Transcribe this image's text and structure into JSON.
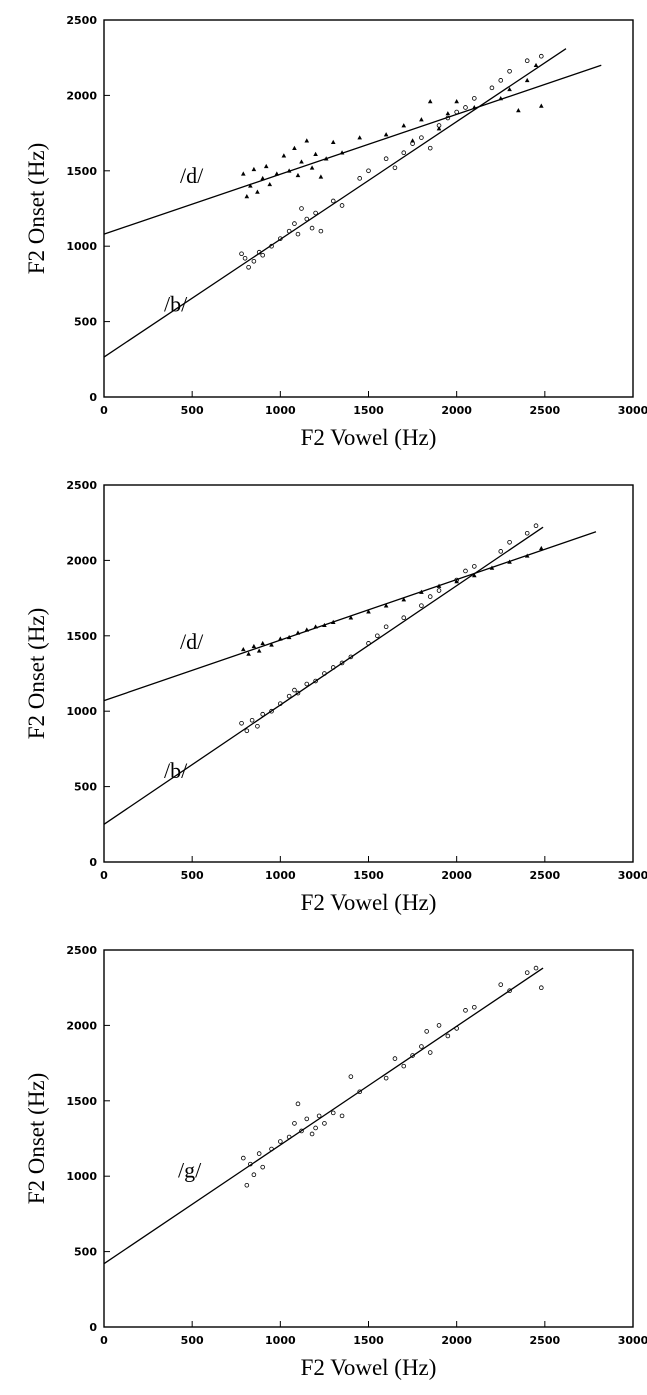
{
  "chart_data": [
    {
      "type": "scatter",
      "title": "",
      "xlabel": "F2 Vowel (Hz)",
      "ylabel": "F2 Onset (Hz)",
      "xlim": [
        0,
        3000
      ],
      "ylim": [
        0,
        2500
      ],
      "xticks": [
        "0",
        "500",
        "1000",
        "1500",
        "2000",
        "2500",
        "3000"
      ],
      "yticks": [
        "0",
        "500",
        "1000",
        "1500",
        "2000",
        "2500"
      ],
      "grid": false,
      "legend": "none",
      "series": [
        {
          "marker": "triangle",
          "regression": {
            "label": "/d/",
            "x": [
              0,
              2820
            ],
            "y": [
              1080,
              2200
            ]
          },
          "points": [
            [
              790,
              1480
            ],
            [
              810,
              1330
            ],
            [
              830,
              1400
            ],
            [
              850,
              1510
            ],
            [
              870,
              1360
            ],
            [
              900,
              1450
            ],
            [
              920,
              1530
            ],
            [
              940,
              1410
            ],
            [
              980,
              1480
            ],
            [
              1020,
              1600
            ],
            [
              1050,
              1500
            ],
            [
              1080,
              1650
            ],
            [
              1100,
              1470
            ],
            [
              1120,
              1560
            ],
            [
              1150,
              1700
            ],
            [
              1180,
              1520
            ],
            [
              1200,
              1610
            ],
            [
              1230,
              1460
            ],
            [
              1260,
              1580
            ],
            [
              1300,
              1690
            ],
            [
              1350,
              1620
            ],
            [
              1450,
              1720
            ],
            [
              1600,
              1740
            ],
            [
              1700,
              1800
            ],
            [
              1750,
              1700
            ],
            [
              1800,
              1840
            ],
            [
              1850,
              1960
            ],
            [
              1900,
              1780
            ],
            [
              1950,
              1880
            ],
            [
              2000,
              1960
            ],
            [
              2100,
              1920
            ],
            [
              2250,
              1980
            ],
            [
              2300,
              2040
            ],
            [
              2350,
              1900
            ],
            [
              2400,
              2100
            ],
            [
              2450,
              2200
            ],
            [
              2480,
              1930
            ]
          ]
        },
        {
          "marker": "circle",
          "regression": {
            "label": "/b/",
            "x": [
              0,
              2620
            ],
            "y": [
              265,
              2310
            ]
          },
          "points": [
            [
              780,
              950
            ],
            [
              800,
              920
            ],
            [
              820,
              860
            ],
            [
              850,
              900
            ],
            [
              880,
              960
            ],
            [
              900,
              940
            ],
            [
              950,
              1000
            ],
            [
              1000,
              1050
            ],
            [
              1050,
              1100
            ],
            [
              1080,
              1150
            ],
            [
              1100,
              1080
            ],
            [
              1120,
              1250
            ],
            [
              1150,
              1180
            ],
            [
              1180,
              1120
            ],
            [
              1200,
              1220
            ],
            [
              1230,
              1100
            ],
            [
              1300,
              1300
            ],
            [
              1350,
              1270
            ],
            [
              1450,
              1450
            ],
            [
              1500,
              1500
            ],
            [
              1600,
              1580
            ],
            [
              1650,
              1520
            ],
            [
              1700,
              1620
            ],
            [
              1750,
              1680
            ],
            [
              1800,
              1720
            ],
            [
              1850,
              1650
            ],
            [
              1900,
              1800
            ],
            [
              1950,
              1850
            ],
            [
              2000,
              1890
            ],
            [
              2050,
              1920
            ],
            [
              2100,
              1980
            ],
            [
              2200,
              2050
            ],
            [
              2250,
              2100
            ],
            [
              2300,
              2160
            ],
            [
              2400,
              2230
            ],
            [
              2480,
              2260
            ]
          ]
        }
      ]
    },
    {
      "type": "scatter",
      "title": "",
      "xlabel": "F2 Vowel (Hz)",
      "ylabel": "F2 Onset (Hz)",
      "xlim": [
        0,
        3000
      ],
      "ylim": [
        0,
        2500
      ],
      "xticks": [
        "0",
        "500",
        "1000",
        "1500",
        "2000",
        "2500",
        "3000"
      ],
      "yticks": [
        "0",
        "500",
        "1000",
        "1500",
        "2000",
        "2500"
      ],
      "grid": false,
      "legend": "none",
      "series": [
        {
          "marker": "triangle",
          "regression": {
            "label": "/d/",
            "x": [
              0,
              2790
            ],
            "y": [
              1070,
              2190
            ]
          },
          "points": [
            [
              790,
              1410
            ],
            [
              820,
              1380
            ],
            [
              850,
              1430
            ],
            [
              880,
              1400
            ],
            [
              900,
              1450
            ],
            [
              950,
              1440
            ],
            [
              1000,
              1480
            ],
            [
              1050,
              1490
            ],
            [
              1100,
              1520
            ],
            [
              1150,
              1540
            ],
            [
              1200,
              1560
            ],
            [
              1250,
              1570
            ],
            [
              1300,
              1590
            ],
            [
              1400,
              1620
            ],
            [
              1500,
              1660
            ],
            [
              1600,
              1700
            ],
            [
              1700,
              1740
            ],
            [
              1800,
              1790
            ],
            [
              1900,
              1830
            ],
            [
              2000,
              1860
            ],
            [
              2100,
              1900
            ],
            [
              2200,
              1950
            ],
            [
              2300,
              1990
            ],
            [
              2400,
              2030
            ],
            [
              2480,
              2080
            ]
          ]
        },
        {
          "marker": "circle",
          "regression": {
            "label": "/b/",
            "x": [
              0,
              2490
            ],
            "y": [
              250,
              2220
            ]
          },
          "points": [
            [
              780,
              920
            ],
            [
              810,
              870
            ],
            [
              840,
              940
            ],
            [
              870,
              900
            ],
            [
              900,
              980
            ],
            [
              950,
              1000
            ],
            [
              1000,
              1050
            ],
            [
              1050,
              1100
            ],
            [
              1080,
              1140
            ],
            [
              1100,
              1120
            ],
            [
              1150,
              1180
            ],
            [
              1200,
              1200
            ],
            [
              1250,
              1250
            ],
            [
              1300,
              1290
            ],
            [
              1350,
              1320
            ],
            [
              1400,
              1360
            ],
            [
              1500,
              1450
            ],
            [
              1550,
              1500
            ],
            [
              1600,
              1560
            ],
            [
              1700,
              1620
            ],
            [
              1800,
              1700
            ],
            [
              1850,
              1760
            ],
            [
              1900,
              1800
            ],
            [
              2000,
              1870
            ],
            [
              2050,
              1930
            ],
            [
              2100,
              1960
            ],
            [
              2250,
              2060
            ],
            [
              2300,
              2120
            ],
            [
              2400,
              2180
            ],
            [
              2450,
              2230
            ]
          ]
        }
      ]
    },
    {
      "type": "scatter",
      "title": "",
      "xlabel": "F2 Vowel (Hz)",
      "ylabel": "F2 Onset (Hz)",
      "xlim": [
        0,
        3000
      ],
      "ylim": [
        0,
        2500
      ],
      "xticks": [
        "0",
        "500",
        "1000",
        "1500",
        "2000",
        "2500",
        "3000"
      ],
      "yticks": [
        "0",
        "500",
        "1000",
        "1500",
        "2000",
        "2500"
      ],
      "grid": false,
      "legend": "none",
      "series": [
        {
          "marker": "circle",
          "regression": {
            "label": "/g/",
            "x": [
              0,
              2490
            ],
            "y": [
              420,
              2380
            ]
          },
          "points": [
            [
              790,
              1120
            ],
            [
              810,
              940
            ],
            [
              830,
              1080
            ],
            [
              850,
              1010
            ],
            [
              880,
              1150
            ],
            [
              900,
              1060
            ],
            [
              950,
              1180
            ],
            [
              1000,
              1230
            ],
            [
              1050,
              1260
            ],
            [
              1080,
              1350
            ],
            [
              1100,
              1480
            ],
            [
              1120,
              1300
            ],
            [
              1150,
              1380
            ],
            [
              1180,
              1280
            ],
            [
              1200,
              1320
            ],
            [
              1220,
              1400
            ],
            [
              1250,
              1350
            ],
            [
              1300,
              1420
            ],
            [
              1350,
              1400
            ],
            [
              1400,
              1660
            ],
            [
              1450,
              1560
            ],
            [
              1600,
              1650
            ],
            [
              1650,
              1780
            ],
            [
              1700,
              1730
            ],
            [
              1750,
              1800
            ],
            [
              1800,
              1860
            ],
            [
              1830,
              1960
            ],
            [
              1850,
              1820
            ],
            [
              1900,
              2000
            ],
            [
              1950,
              1930
            ],
            [
              2000,
              1980
            ],
            [
              2050,
              2100
            ],
            [
              2100,
              2120
            ],
            [
              2250,
              2270
            ],
            [
              2300,
              2230
            ],
            [
              2400,
              2350
            ],
            [
              2450,
              2380
            ],
            [
              2480,
              2250
            ]
          ]
        }
      ]
    }
  ]
}
